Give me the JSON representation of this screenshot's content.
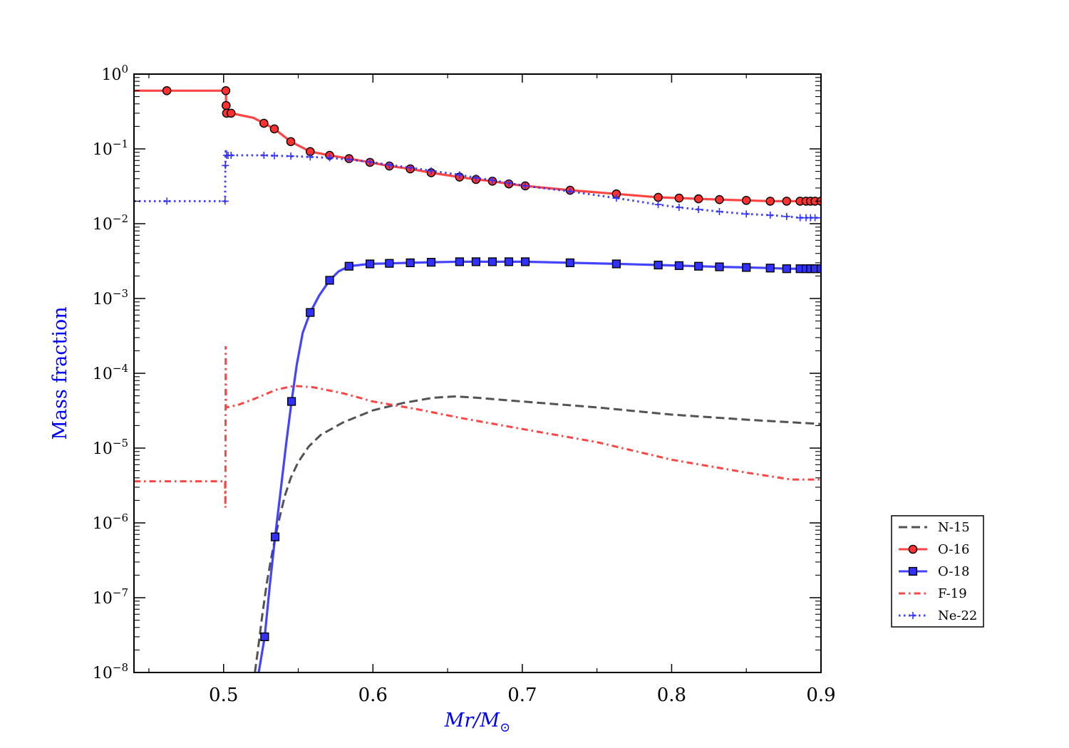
{
  "chart_data": {
    "type": "line",
    "xlabel_main": "Mr",
    "xlabel_sep": "/",
    "xlabel_m": "M",
    "xlabel_sub": "⊙",
    "ylabel": "Mass fraction",
    "xlim": [
      0.44,
      0.9
    ],
    "ylim": [
      1e-08,
      1
    ],
    "yscale": "log",
    "x_ticks": [
      0.5,
      0.6,
      0.7,
      0.8,
      0.9
    ],
    "x_tick_labels": [
      "0.5",
      "0.6",
      "0.7",
      "0.8",
      "0.9"
    ],
    "y_ticks": [
      0,
      -1,
      -2,
      -3,
      -4,
      -5,
      -6,
      -7,
      -8
    ],
    "y_tick_base": "10",
    "y_tick_exponents": [
      "0",
      "−1",
      "−2",
      "−3",
      "−4",
      "−5",
      "−6",
      "−7",
      "−8"
    ],
    "legend_position": "right, outside plot",
    "series": [
      {
        "name": "N-15",
        "color": "#404040",
        "style": "dashed",
        "marker": "none",
        "x": [
          0.521,
          0.523,
          0.526,
          0.529,
          0.532,
          0.535,
          0.538,
          0.541,
          0.545,
          0.55,
          0.557,
          0.565,
          0.58,
          0.6,
          0.62,
          0.64,
          0.655,
          0.67,
          0.7,
          0.75,
          0.8,
          0.85,
          0.9
        ],
        "y": [
          1e-08,
          2e-08,
          6e-08,
          1.6e-07,
          3.5e-07,
          7e-07,
          1.3e-06,
          2.3e-06,
          4e-06,
          6.5e-06,
          1.05e-05,
          1.5e-05,
          2.2e-05,
          3.2e-05,
          4e-05,
          4.7e-05,
          4.9e-05,
          4.7e-05,
          4.2e-05,
          3.5e-05,
          2.8e-05,
          2.4e-05,
          2.1e-05
        ]
      },
      {
        "name": "O-16",
        "color": "#ff3030",
        "style": "solid",
        "marker": "circle",
        "x": [
          0.44,
          0.462,
          0.501,
          0.5015,
          0.5017,
          0.502,
          0.503,
          0.505,
          0.52,
          0.527,
          0.534,
          0.545,
          0.558,
          0.571,
          0.584,
          0.598,
          0.611,
          0.625,
          0.639,
          0.658,
          0.669,
          0.68,
          0.691,
          0.702,
          0.732,
          0.763,
          0.791,
          0.805,
          0.818,
          0.832,
          0.85,
          0.866,
          0.877,
          0.886,
          0.89,
          0.893,
          0.896,
          0.9
        ],
        "y": [
          0.6,
          0.6,
          0.6,
          0.6,
          0.38,
          0.3,
          0.3,
          0.3,
          0.26,
          0.22,
          0.185,
          0.125,
          0.092,
          0.082,
          0.074,
          0.066,
          0.059,
          0.054,
          0.048,
          0.042,
          0.039,
          0.037,
          0.034,
          0.032,
          0.028,
          0.025,
          0.0225,
          0.022,
          0.0215,
          0.021,
          0.0205,
          0.02,
          0.02,
          0.02,
          0.02,
          0.02,
          0.02,
          0.02
        ],
        "marker_index": [
          1,
          3,
          4,
          5,
          7,
          9,
          10,
          11,
          12,
          13,
          14,
          15,
          16,
          17,
          18,
          19,
          20,
          21,
          22,
          23,
          24,
          25,
          26,
          27,
          28,
          29,
          30,
          31,
          32,
          33,
          34,
          35,
          36,
          37
        ]
      },
      {
        "name": "O-18",
        "color": "#3030ff",
        "style": "solid",
        "marker": "square",
        "x": [
          0.5235,
          0.5275,
          0.531,
          0.5345,
          0.538,
          0.542,
          0.5455,
          0.549,
          0.553,
          0.558,
          0.564,
          0.571,
          0.577,
          0.584,
          0.598,
          0.611,
          0.625,
          0.639,
          0.658,
          0.669,
          0.68,
          0.691,
          0.702,
          0.732,
          0.763,
          0.791,
          0.805,
          0.818,
          0.832,
          0.85,
          0.866,
          0.877,
          0.886,
          0.89,
          0.893,
          0.896,
          0.9
        ],
        "y": [
          1e-08,
          3e-08,
          1.5e-07,
          6.5e-07,
          2.5e-06,
          1.2e-05,
          4.2e-05,
          0.00013,
          0.00035,
          0.00065,
          0.0011,
          0.00175,
          0.0023,
          0.0027,
          0.0029,
          0.00295,
          0.003,
          0.00305,
          0.0031,
          0.0031,
          0.0031,
          0.0031,
          0.0031,
          0.003,
          0.0029,
          0.0028,
          0.00275,
          0.0027,
          0.00265,
          0.0026,
          0.00255,
          0.0025,
          0.0025,
          0.0025,
          0.0025,
          0.0025,
          0.0025
        ],
        "marker_index": [
          1,
          3,
          6,
          9,
          11,
          13,
          14,
          15,
          16,
          17,
          18,
          19,
          20,
          21,
          22,
          23,
          24,
          25,
          26,
          27,
          28,
          29,
          30,
          31,
          32,
          33,
          34,
          35,
          36
        ]
      },
      {
        "name": "F-19",
        "color": "#ff3030",
        "style": "dashdot",
        "marker": "none",
        "x": [
          0.44,
          0.501,
          0.5012,
          0.5014,
          0.5016,
          0.502,
          0.51,
          0.52,
          0.535,
          0.547,
          0.56,
          0.58,
          0.6,
          0.63,
          0.66,
          0.7,
          0.75,
          0.8,
          0.85,
          0.88,
          0.9
        ],
        "y": [
          3.6e-06,
          3.6e-06,
          1.6e-06,
          0.00023,
          3.5e-05,
          3.5e-05,
          3.8e-05,
          4.5e-05,
          6e-05,
          6.8e-05,
          6.5e-05,
          5.4e-05,
          4.2e-05,
          3.3e-05,
          2.5e-05,
          1.8e-05,
          1.2e-05,
          7e-06,
          4.7e-06,
          3.8e-06,
          3.8e-06
        ]
      },
      {
        "name": "Ne-22",
        "color": "#3030ff",
        "style": "dotted",
        "marker": "plus",
        "x": [
          0.44,
          0.462,
          0.501,
          0.5012,
          0.5014,
          0.502,
          0.503,
          0.505,
          0.527,
          0.534,
          0.545,
          0.558,
          0.571,
          0.584,
          0.598,
          0.611,
          0.625,
          0.639,
          0.658,
          0.669,
          0.68,
          0.691,
          0.702,
          0.732,
          0.763,
          0.791,
          0.805,
          0.818,
          0.832,
          0.85,
          0.866,
          0.877,
          0.886,
          0.89,
          0.893,
          0.896,
          0.9
        ],
        "y": [
          0.02,
          0.02,
          0.02,
          0.06,
          0.1,
          0.082,
          0.082,
          0.082,
          0.082,
          0.081,
          0.08,
          0.078,
          0.076,
          0.072,
          0.067,
          0.061,
          0.056,
          0.051,
          0.045,
          0.041,
          0.038,
          0.035,
          0.032,
          0.027,
          0.022,
          0.018,
          0.0165,
          0.0155,
          0.0145,
          0.0135,
          0.013,
          0.0125,
          0.012,
          0.012,
          0.012,
          0.012,
          0.012
        ],
        "marker_index": [
          1,
          2,
          3,
          5,
          6,
          7,
          8,
          9,
          10,
          11,
          12,
          13,
          14,
          15,
          16,
          17,
          18,
          19,
          20,
          21,
          22,
          23,
          24,
          25,
          26,
          27,
          28,
          29,
          30,
          31,
          32,
          33,
          34,
          35,
          36
        ]
      }
    ]
  }
}
